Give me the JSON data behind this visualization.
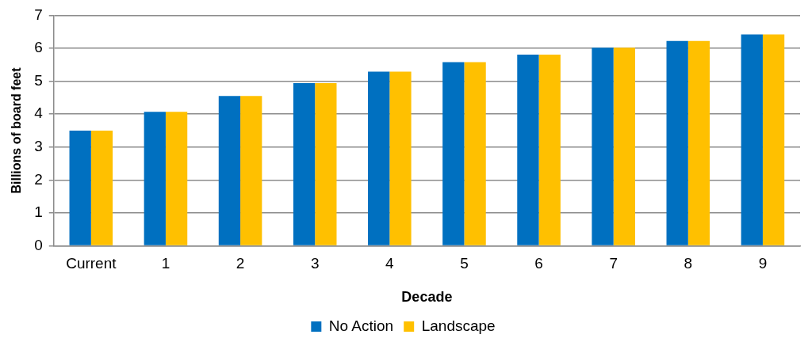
{
  "chart_data": {
    "type": "bar",
    "xlabel": "Decade",
    "ylabel": "Billions of board feet",
    "categories": [
      "Current",
      "1",
      "2",
      "3",
      "4",
      "5",
      "6",
      "7",
      "8",
      "9"
    ],
    "series": [
      {
        "name": "No Action",
        "color": "#0070c0",
        "values": [
          3.5,
          4.07,
          4.55,
          4.94,
          5.29,
          5.58,
          5.81,
          6.02,
          6.22,
          6.42
        ]
      },
      {
        "name": "Landscape",
        "color": "#ffc000",
        "values": [
          3.5,
          4.07,
          4.55,
          4.94,
          5.29,
          5.58,
          5.81,
          6.02,
          6.22,
          6.42
        ]
      }
    ],
    "ylim": [
      0,
      7
    ],
    "yticks": [
      0,
      1,
      2,
      3,
      4,
      5,
      6,
      7
    ],
    "grid": "y",
    "legend": "bottom"
  }
}
